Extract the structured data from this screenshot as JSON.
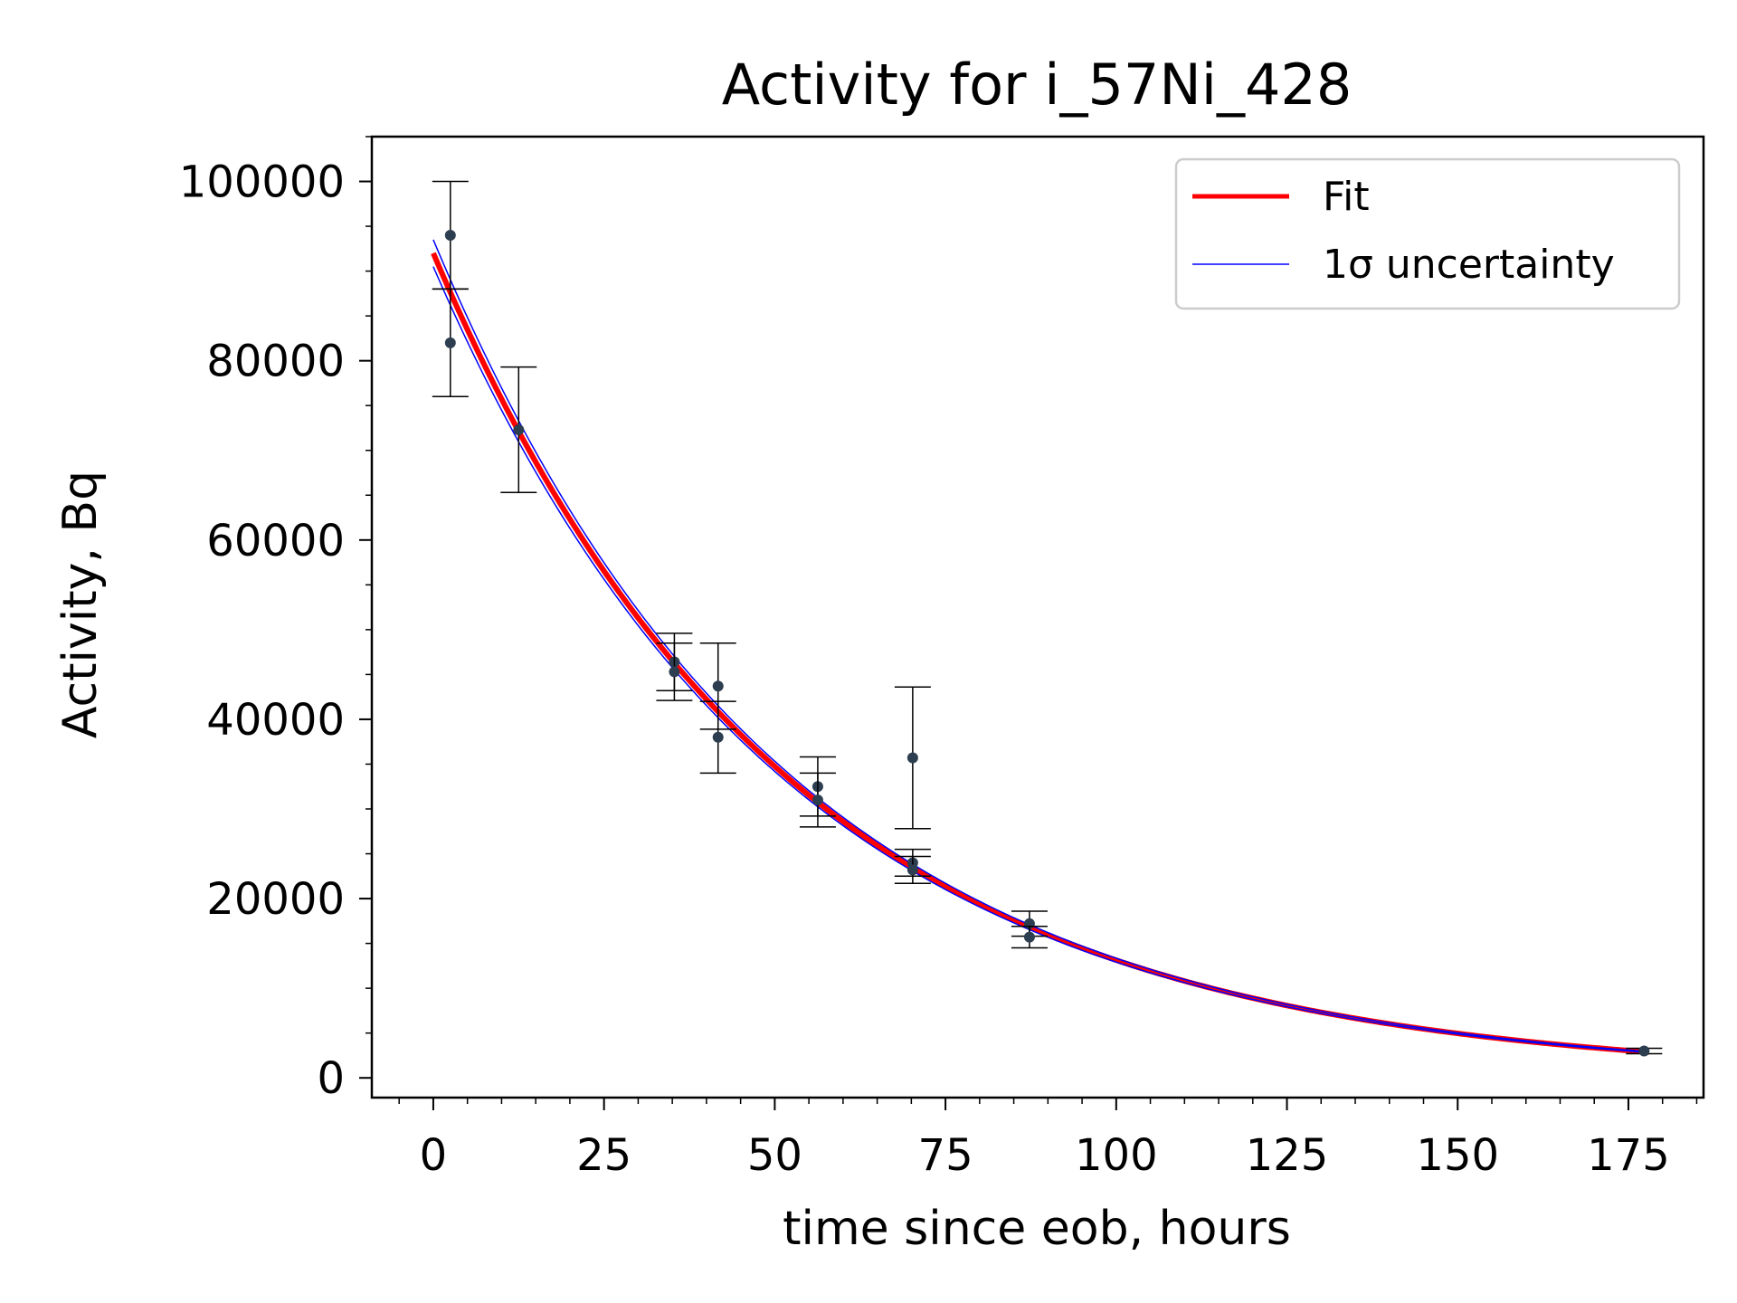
{
  "chart_data": {
    "type": "scatter",
    "title": "Activity for i_57Ni_428",
    "xlabel": "time since eob, hours",
    "ylabel": "Activity, Bq",
    "xlim": [
      -9,
      186
    ],
    "ylim": [
      -2200,
      105000
    ],
    "x_ticks": [
      0,
      25,
      50,
      75,
      100,
      125,
      150,
      175
    ],
    "y_ticks": [
      0,
      20000,
      40000,
      60000,
      80000,
      100000
    ],
    "x_minor_step": 5,
    "y_minor_step": 5000,
    "grid": false,
    "legend": {
      "placement": "top-right",
      "entries": [
        {
          "label": "Fit",
          "color": "#ff0000",
          "style": "thick-line"
        },
        {
          "label": "1σ uncertainty",
          "color": "#0000ff",
          "style": "thin-line"
        }
      ]
    },
    "fit": {
      "A0": 92000,
      "half_life_hours": 35.6,
      "uncertainty_A0": [
        93500,
        90500
      ],
      "x_range": [
        0,
        178
      ]
    },
    "points": [
      {
        "x": 2.5,
        "y": 94000,
        "err": 6000
      },
      {
        "x": 2.5,
        "y": 82000,
        "err": 6000
      },
      {
        "x": 12.5,
        "y": 72300,
        "err": 7000
      },
      {
        "x": 35.3,
        "y": 46400,
        "err": 3200
      },
      {
        "x": 35.3,
        "y": 45300,
        "err": 3200
      },
      {
        "x": 41.7,
        "y": 43700,
        "err": 4800
      },
      {
        "x": 41.7,
        "y": 38000,
        "err": 4000
      },
      {
        "x": 56.3,
        "y": 32500,
        "err": 3300
      },
      {
        "x": 56.3,
        "y": 31000,
        "err": 3000
      },
      {
        "x": 70.2,
        "y": 35700,
        "err": 7900
      },
      {
        "x": 70.2,
        "y": 24000,
        "err": 1500
      },
      {
        "x": 70.2,
        "y": 23200,
        "err": 1500
      },
      {
        "x": 87.3,
        "y": 17200,
        "err": 1400
      },
      {
        "x": 87.3,
        "y": 15700,
        "err": 1200
      },
      {
        "x": 177.3,
        "y": 3000,
        "err": 300
      }
    ],
    "colors": {
      "points": "#2d3e50",
      "errorbars": "#000000",
      "fit": "#ff0000",
      "uncertainty": "#0000ff"
    }
  }
}
